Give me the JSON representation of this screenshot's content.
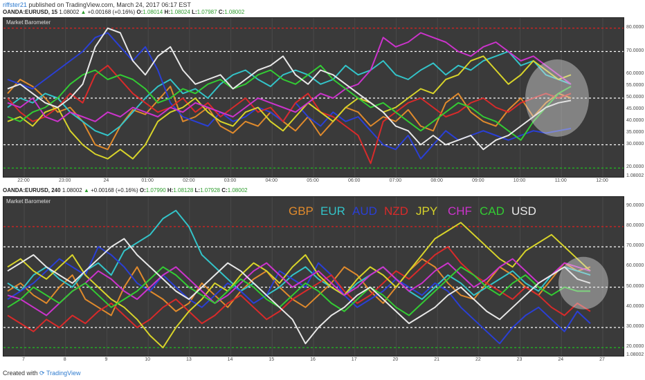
{
  "header": {
    "user": "riffster21",
    "text": " published on TradingView.com, March 24, 2017 06:17 EST"
  },
  "panels": [
    {
      "symbol": "OANDA:EURUSD, 15",
      "price": "1.08002",
      "change": "+0.00168 (+0.16%)",
      "o": "1.08014",
      "h": "1.08024",
      "l": "1.07987",
      "c": "1.08002",
      "title": "Market Barometer",
      "yticks": [
        "80.0000",
        "70.0000",
        "60.0000",
        "55.0000",
        "50.0000",
        "45.0000",
        "40.0000",
        "35.0000",
        "30.0000",
        "20.0000",
        "1.08002"
      ],
      "xticks": [
        "22:00",
        "23:00",
        "24",
        "01:00",
        "02:00",
        "03:00",
        "04:00",
        "05:00",
        "06:00",
        "07:00",
        "08:00",
        "09:00",
        "10:00",
        "11:00",
        "12:00"
      ]
    },
    {
      "symbol": "OANDA:EURUSD, 240",
      "price": "1.08002",
      "change": "+0.00168 (+0.16%)",
      "o": "1.07990",
      "h": "1.08128",
      "l": "1.07928",
      "c": "1.08002",
      "title": "Market Barometer",
      "yticks": [
        "90.0000",
        "80.0000",
        "70.0000",
        "60.0000",
        "50.0000",
        "40.0000",
        "30.0000",
        "20.0000",
        "1.08002"
      ],
      "xticks": [
        "7",
        "8",
        "9",
        "10",
        "13",
        "14",
        "15",
        "16",
        "17",
        "20",
        "21",
        "22",
        "23",
        "24",
        "27"
      ],
      "legend": [
        "GBP",
        "EUR",
        "AUD",
        "NZD",
        "JPY",
        "CHF",
        "CAD",
        "USD"
      ]
    }
  ],
  "footer": {
    "created": "Created with",
    "brand": "TradingView"
  },
  "colors": {
    "GBP": "#e08a2c",
    "EUR": "#33c4c9",
    "AUD": "#2a3fd6",
    "NZD": "#d92a2a",
    "JPY": "#d8d42a",
    "CHF": "#cc33cc",
    "CAD": "#33cc33",
    "USD": "#e8e8e8"
  },
  "chart_data": [
    {
      "type": "line",
      "title": "Market Barometer",
      "ylim": [
        18,
        82
      ],
      "levels": [
        {
          "value": 80,
          "color": "#e02020"
        },
        {
          "value": 70,
          "color": "#ffffff"
        },
        {
          "value": 50,
          "color": "#ffffff"
        },
        {
          "value": 30,
          "color": "#ffffff"
        },
        {
          "value": 20,
          "color": "#20c020"
        }
      ],
      "series": [
        {
          "name": "GBP",
          "values": [
            52,
            58,
            55,
            50,
            44,
            46,
            40,
            30,
            28,
            38,
            45,
            43,
            49,
            55,
            40,
            42,
            46,
            38,
            35,
            40,
            38,
            44,
            40,
            36,
            42,
            34,
            40,
            46,
            44,
            38,
            42,
            40,
            45,
            38,
            36,
            48,
            52,
            44,
            40,
            38,
            45,
            50,
            42,
            48,
            52,
            50
          ]
        },
        {
          "name": "EUR",
          "values": [
            46,
            50,
            48,
            52,
            50,
            44,
            40,
            36,
            34,
            38,
            44,
            50,
            55,
            58,
            52,
            54,
            50,
            56,
            60,
            62,
            58,
            55,
            60,
            62,
            60,
            56,
            58,
            64,
            60,
            62,
            66,
            60,
            58,
            62,
            65,
            60,
            64,
            62,
            66,
            68,
            70,
            64,
            66,
            60,
            58,
            56
          ]
        },
        {
          "name": "AUD",
          "values": [
            58,
            56,
            54,
            58,
            62,
            66,
            70,
            76,
            78,
            72,
            66,
            72,
            62,
            48,
            42,
            40,
            38,
            44,
            40,
            42,
            46,
            44,
            40,
            48,
            42,
            38,
            44,
            40,
            42,
            36,
            30,
            28,
            34,
            24,
            30,
            36,
            32,
            34,
            36,
            34,
            32,
            34,
            36,
            35,
            36,
            37
          ]
        },
        {
          "name": "NZD",
          "values": [
            50,
            44,
            40,
            42,
            46,
            52,
            48,
            60,
            64,
            58,
            52,
            48,
            44,
            46,
            50,
            44,
            48,
            42,
            46,
            50,
            44,
            46,
            40,
            48,
            52,
            44,
            42,
            38,
            34,
            22,
            40,
            44,
            48,
            50,
            46,
            42,
            44,
            48,
            50,
            46,
            44,
            48,
            50,
            52,
            50,
            52
          ]
        },
        {
          "name": "JPY",
          "values": [
            40,
            42,
            38,
            44,
            46,
            36,
            30,
            26,
            24,
            28,
            24,
            30,
            40,
            44,
            46,
            50,
            44,
            40,
            38,
            44,
            46,
            40,
            36,
            42,
            48,
            44,
            40,
            46,
            50,
            48,
            44,
            46,
            50,
            54,
            52,
            58,
            60,
            66,
            68,
            62,
            56,
            60,
            66,
            62,
            58,
            60
          ]
        },
        {
          "name": "CHF",
          "values": [
            48,
            46,
            50,
            42,
            40,
            44,
            42,
            40,
            44,
            42,
            46,
            44,
            42,
            46,
            44,
            48,
            46,
            44,
            42,
            46,
            50,
            48,
            46,
            44,
            48,
            52,
            50,
            54,
            56,
            62,
            76,
            72,
            74,
            78,
            76,
            74,
            70,
            68,
            72,
            74,
            70,
            66,
            68,
            64,
            60,
            56
          ]
        },
        {
          "name": "CAD",
          "values": [
            42,
            40,
            44,
            46,
            50,
            56,
            60,
            62,
            58,
            60,
            58,
            54,
            48,
            50,
            54,
            52,
            56,
            58,
            54,
            56,
            60,
            62,
            58,
            56,
            60,
            64,
            58,
            54,
            50,
            46,
            48,
            44,
            40,
            36,
            40,
            44,
            48,
            46,
            42,
            40,
            36,
            32,
            40,
            46,
            52,
            55
          ]
        },
        {
          "name": "USD",
          "values": [
            54,
            56,
            52,
            48,
            46,
            50,
            56,
            72,
            80,
            78,
            66,
            60,
            68,
            72,
            62,
            56,
            58,
            60,
            54,
            58,
            62,
            64,
            68,
            60,
            56,
            62,
            60,
            56,
            52,
            48,
            44,
            38,
            36,
            30,
            34,
            30,
            32,
            34,
            28,
            32,
            34,
            38,
            42,
            46,
            48,
            49
          ]
        }
      ]
    },
    {
      "type": "line",
      "title": "Market Barometer",
      "ylim": [
        18,
        92
      ],
      "levels": [
        {
          "value": 80,
          "color": "#e02020"
        },
        {
          "value": 70,
          "color": "#ffffff"
        },
        {
          "value": 50,
          "color": "#ffffff"
        },
        {
          "value": 30,
          "color": "#ffffff"
        },
        {
          "value": 20,
          "color": "#20c020"
        }
      ],
      "series": [
        {
          "name": "GBP",
          "values": [
            48,
            52,
            46,
            42,
            50,
            56,
            44,
            40,
            36,
            50,
            60,
            48,
            44,
            38,
            42,
            52,
            46,
            40,
            48,
            54,
            58,
            50,
            44,
            40,
            46,
            52,
            60,
            56,
            48,
            42,
            50,
            58,
            64,
            60,
            52,
            46,
            44,
            52,
            60,
            56,
            50,
            46,
            54,
            62,
            58,
            60
          ]
        },
        {
          "name": "EUR",
          "values": [
            52,
            48,
            56,
            60,
            54,
            50,
            58,
            62,
            56,
            68,
            72,
            76,
            84,
            88,
            80,
            66,
            60,
            54,
            48,
            52,
            46,
            50,
            56,
            60,
            54,
            50,
            46,
            52,
            56,
            60,
            54,
            48,
            44,
            50,
            56,
            52,
            46,
            50,
            54,
            58,
            52,
            48,
            56,
            60,
            58,
            56
          ]
        },
        {
          "name": "AUD",
          "values": [
            44,
            48,
            52,
            58,
            64,
            60,
            56,
            70,
            66,
            60,
            52,
            48,
            56,
            50,
            44,
            40,
            46,
            52,
            48,
            42,
            46,
            58,
            54,
            50,
            62,
            56,
            46,
            40,
            44,
            48,
            54,
            50,
            46,
            52,
            48,
            40,
            34,
            28,
            22,
            30,
            36,
            40,
            34,
            28,
            38,
            32
          ]
        },
        {
          "name": "NZD",
          "values": [
            36,
            32,
            28,
            34,
            30,
            36,
            32,
            38,
            42,
            36,
            30,
            34,
            40,
            44,
            38,
            32,
            36,
            42,
            46,
            40,
            34,
            38,
            44,
            48,
            52,
            56,
            48,
            42,
            46,
            52,
            58,
            54,
            60,
            66,
            70,
            62,
            56,
            52,
            48,
            44,
            50,
            46,
            40,
            36,
            42,
            38
          ]
        },
        {
          "name": "JPY",
          "values": [
            60,
            64,
            58,
            54,
            60,
            66,
            56,
            50,
            44,
            40,
            34,
            26,
            20,
            30,
            38,
            44,
            52,
            48,
            56,
            62,
            58,
            52,
            60,
            66,
            56,
            50,
            46,
            54,
            60,
            56,
            50,
            58,
            66,
            74,
            78,
            82,
            76,
            70,
            64,
            60,
            68,
            72,
            76,
            70,
            64,
            58
          ]
        },
        {
          "name": "CHF",
          "values": [
            46,
            44,
            40,
            36,
            42,
            48,
            52,
            58,
            54,
            48,
            44,
            50,
            56,
            60,
            54,
            48,
            42,
            46,
            52,
            58,
            62,
            56,
            50,
            54,
            58,
            52,
            46,
            50,
            56,
            60,
            54,
            48,
            52,
            58,
            62,
            56,
            50,
            54,
            60,
            64,
            58,
            52,
            56,
            62,
            60,
            58
          ]
        },
        {
          "name": "CAD",
          "values": [
            40,
            44,
            50,
            46,
            42,
            48,
            52,
            46,
            40,
            44,
            48,
            54,
            60,
            56,
            50,
            46,
            42,
            48,
            54,
            50,
            44,
            40,
            46,
            52,
            48,
            42,
            38,
            44,
            50,
            46,
            40,
            36,
            42,
            48,
            54,
            60,
            56,
            50,
            46,
            52,
            56,
            50,
            46,
            50,
            48,
            48
          ]
        },
        {
          "name": "USD",
          "values": [
            58,
            62,
            66,
            60,
            56,
            52,
            58,
            64,
            70,
            74,
            66,
            60,
            54,
            48,
            44,
            50,
            56,
            62,
            58,
            52,
            46,
            40,
            34,
            22,
            30,
            36,
            40,
            46,
            50,
            44,
            38,
            32,
            36,
            40,
            46,
            50,
            44,
            38,
            34,
            40,
            46,
            52,
            56,
            60,
            54,
            52
          ]
        }
      ]
    }
  ]
}
